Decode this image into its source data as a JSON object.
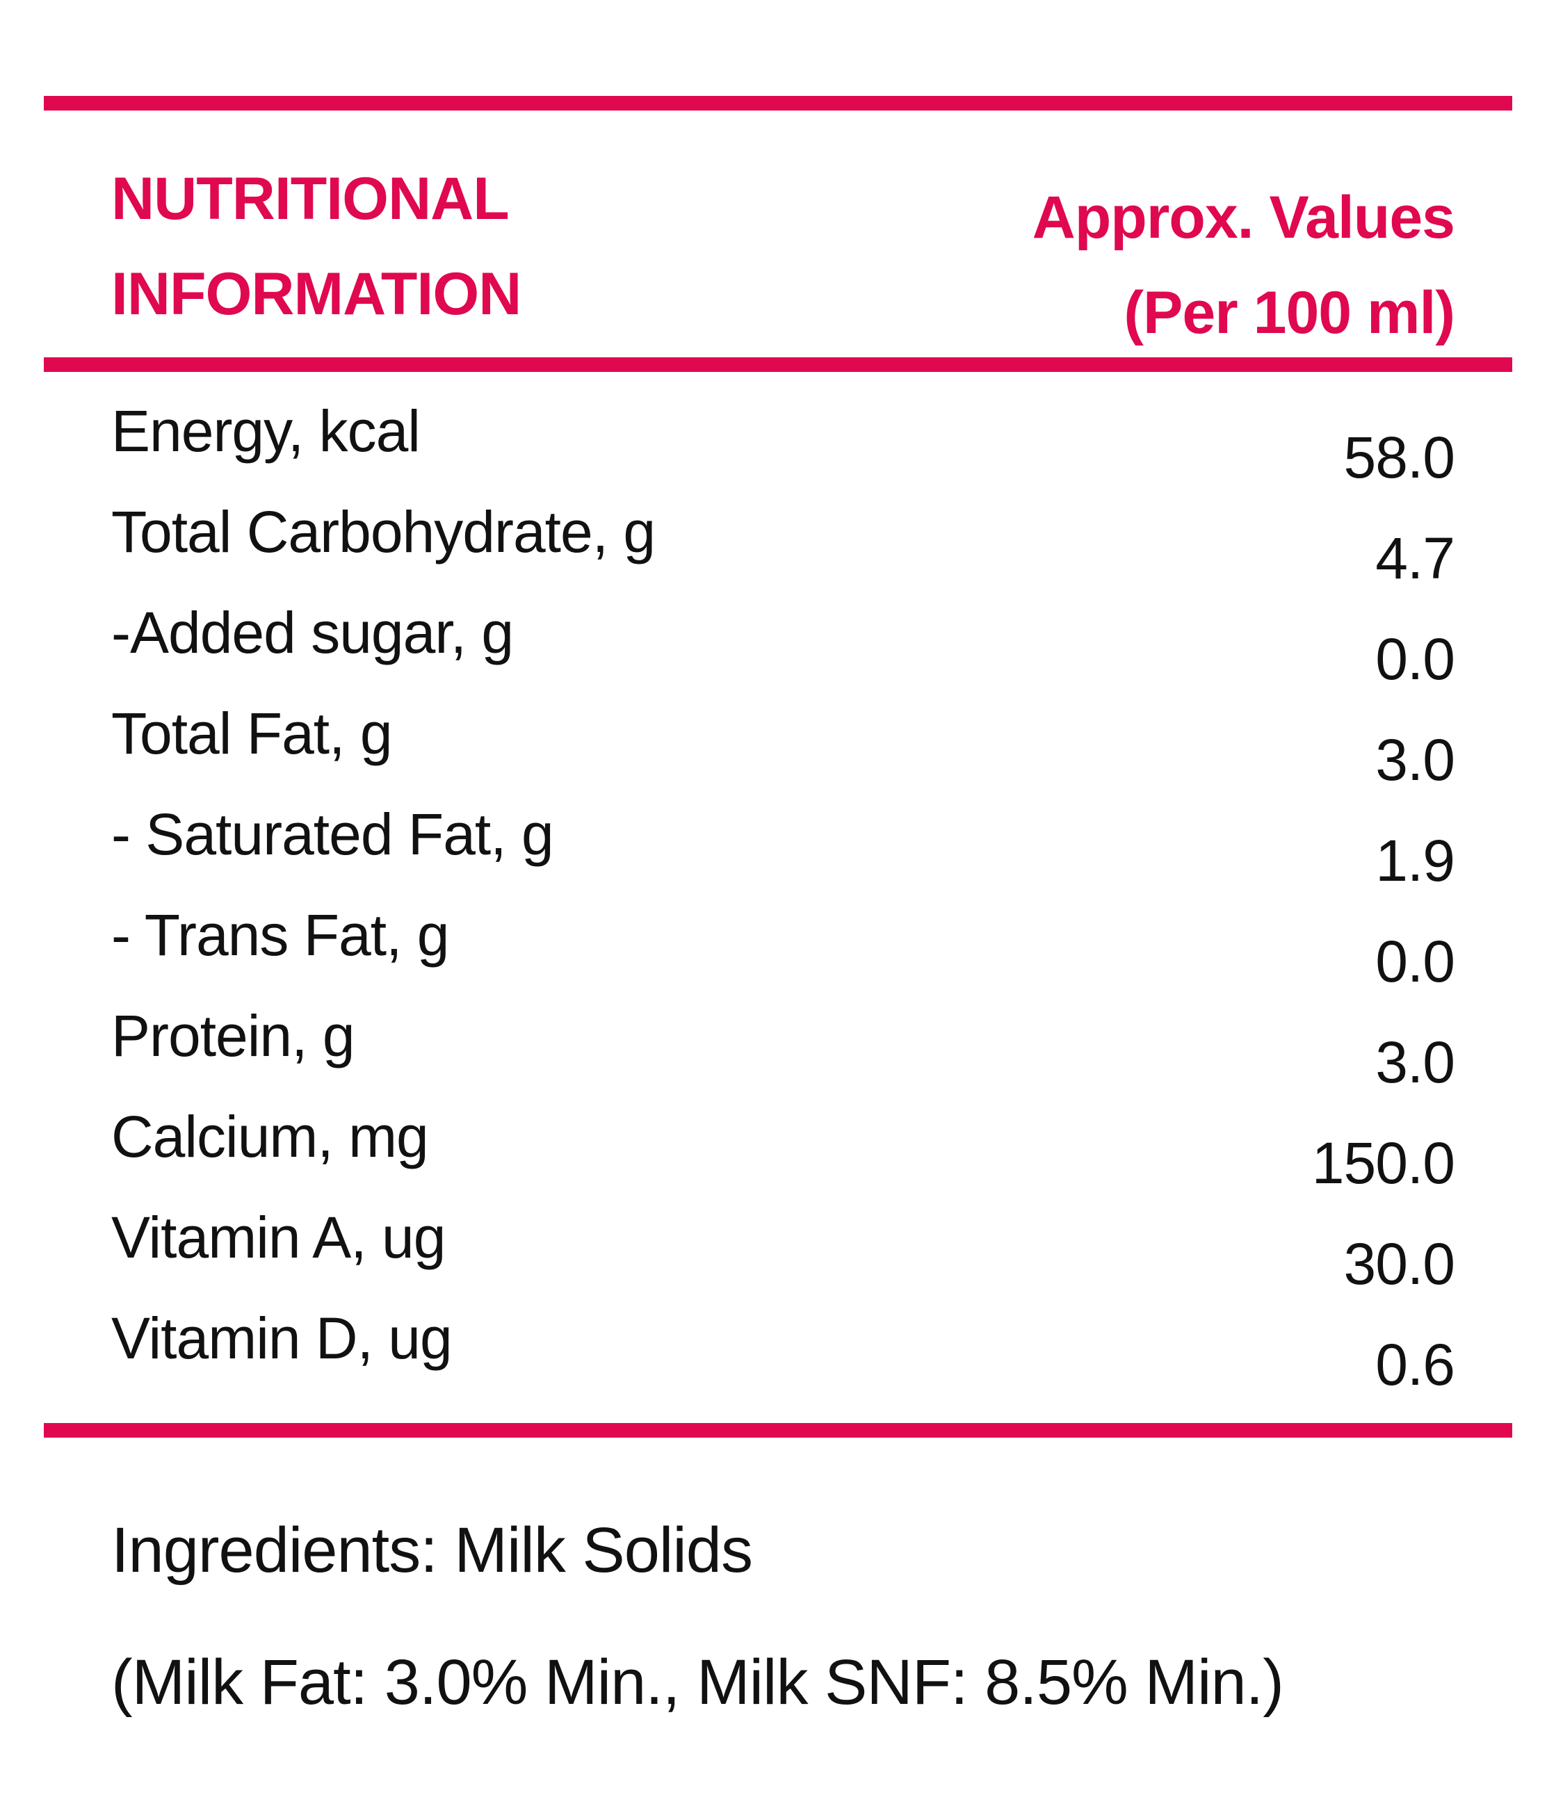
{
  "colors": {
    "accent": "#e0084f",
    "text": "#111111",
    "background": "#ffffff"
  },
  "header": {
    "title_line1": "NUTRITIONAL",
    "title_line2": "INFORMATION",
    "values_line1": "Approx. Values",
    "values_line2": "(Per 100 ml)"
  },
  "nutrients": [
    {
      "label": "Energy, kcal",
      "value": "58.0"
    },
    {
      "label": "Total Carbohydrate, g",
      "value": "4.7"
    },
    {
      "label": "-Added sugar, g",
      "value": "0.0"
    },
    {
      "label": "Total Fat, g",
      "value": "3.0"
    },
    {
      "label": "- Saturated Fat, g",
      "value": "1.9"
    },
    {
      "label": "- Trans Fat, g",
      "value": "0.0"
    },
    {
      "label": "Protein, g",
      "value": "3.0"
    },
    {
      "label": "Calcium, mg",
      "value": "150.0"
    },
    {
      "label": "Vitamin A, ug",
      "value": "30.0"
    },
    {
      "label": "Vitamin D, ug",
      "value": "0.6"
    }
  ],
  "footer": {
    "ingredients": "Ingredients: Milk Solids",
    "composition": "(Milk Fat: 3.0% Min., Milk SNF: 8.5% Min.)"
  }
}
